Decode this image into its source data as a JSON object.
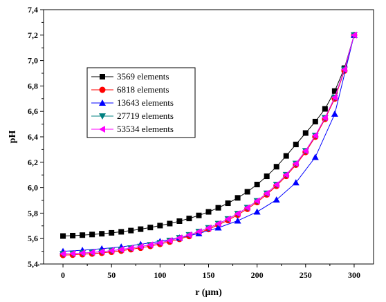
{
  "chart_data": {
    "type": "line",
    "xlabel": "r (µm)",
    "ylabel": "pH",
    "xlim": [
      -20,
      320
    ],
    "ylim": [
      5.4,
      7.4
    ],
    "x_ticks": [
      0,
      50,
      100,
      150,
      200,
      250,
      300
    ],
    "y_ticks": [
      5.4,
      5.6,
      5.8,
      6.0,
      6.2,
      6.4,
      6.6,
      6.8,
      7.0,
      7.2,
      7.4
    ],
    "y_tick_labels": [
      "5,4",
      "5,6",
      "5,8",
      "6,0",
      "6,2",
      "6,4",
      "6,6",
      "6,8",
      "7,0",
      "7,2",
      "7,4"
    ],
    "legend_position": "upper-left",
    "series": [
      {
        "name": "3569 elements",
        "color": "#000000",
        "marker": "square",
        "x": [
          0,
          10,
          20,
          30,
          40,
          50,
          60,
          70,
          80,
          90,
          100,
          110,
          120,
          130,
          140,
          150,
          160,
          170,
          180,
          190,
          200,
          210,
          220,
          230,
          240,
          250,
          260,
          270,
          280,
          290,
          300
        ],
        "y": [
          5.62,
          5.623,
          5.627,
          5.632,
          5.638,
          5.645,
          5.653,
          5.663,
          5.674,
          5.687,
          5.702,
          5.718,
          5.737,
          5.758,
          5.782,
          5.81,
          5.842,
          5.878,
          5.92,
          5.968,
          6.025,
          6.09,
          6.165,
          6.25,
          6.34,
          6.43,
          6.52,
          6.62,
          6.76,
          6.94,
          7.2
        ]
      },
      {
        "name": "6818 elements",
        "color": "#ff0000",
        "marker": "circle",
        "x": [
          0,
          10,
          20,
          30,
          40,
          50,
          60,
          70,
          80,
          90,
          100,
          110,
          120,
          130,
          140,
          150,
          160,
          170,
          180,
          190,
          200,
          210,
          220,
          230,
          240,
          250,
          260,
          270,
          280,
          290,
          300
        ],
        "y": [
          5.47,
          5.472,
          5.476,
          5.481,
          5.487,
          5.495,
          5.504,
          5.515,
          5.527,
          5.541,
          5.557,
          5.575,
          5.596,
          5.619,
          5.645,
          5.674,
          5.707,
          5.744,
          5.786,
          5.833,
          5.886,
          5.946,
          6.014,
          6.092,
          6.18,
          6.28,
          6.4,
          6.54,
          6.7,
          6.92,
          7.2
        ]
      },
      {
        "name": "13643 elements",
        "color": "#0000ff",
        "marker": "triangle-up",
        "x": [
          0,
          20,
          40,
          60,
          80,
          100,
          120,
          140,
          160,
          180,
          200,
          220,
          240,
          260,
          280,
          300
        ],
        "y": [
          5.5,
          5.508,
          5.52,
          5.535,
          5.555,
          5.578,
          5.606,
          5.64,
          5.685,
          5.74,
          5.81,
          5.905,
          6.04,
          6.24,
          6.58,
          7.2
        ]
      },
      {
        "name": "27719 elements",
        "color": "#008080",
        "marker": "triangle-down",
        "x": [
          0,
          10,
          20,
          30,
          40,
          50,
          60,
          70,
          80,
          90,
          100,
          110,
          120,
          130,
          140,
          150,
          160,
          170,
          180,
          190,
          200,
          210,
          220,
          230,
          240,
          250,
          260,
          270,
          280,
          290,
          300
        ],
        "y": [
          5.48,
          5.482,
          5.486,
          5.491,
          5.497,
          5.505,
          5.514,
          5.525,
          5.537,
          5.551,
          5.567,
          5.585,
          5.606,
          5.629,
          5.655,
          5.684,
          5.717,
          5.754,
          5.796,
          5.843,
          5.896,
          5.956,
          6.024,
          6.102,
          6.19,
          6.29,
          6.41,
          6.55,
          6.71,
          6.93,
          7.2
        ]
      },
      {
        "name": "53534 elements",
        "color": "#ff00ff",
        "marker": "triangle-left",
        "x": [
          0,
          10,
          20,
          30,
          40,
          50,
          60,
          70,
          80,
          90,
          100,
          110,
          120,
          130,
          140,
          150,
          160,
          170,
          180,
          190,
          200,
          210,
          220,
          230,
          240,
          250,
          260,
          270,
          280,
          290,
          300
        ],
        "y": [
          5.48,
          5.482,
          5.486,
          5.491,
          5.497,
          5.505,
          5.514,
          5.525,
          5.537,
          5.551,
          5.567,
          5.585,
          5.606,
          5.629,
          5.655,
          5.684,
          5.717,
          5.754,
          5.796,
          5.843,
          5.896,
          5.956,
          6.024,
          6.102,
          6.19,
          6.29,
          6.41,
          6.55,
          6.71,
          6.93,
          7.2
        ]
      }
    ]
  }
}
